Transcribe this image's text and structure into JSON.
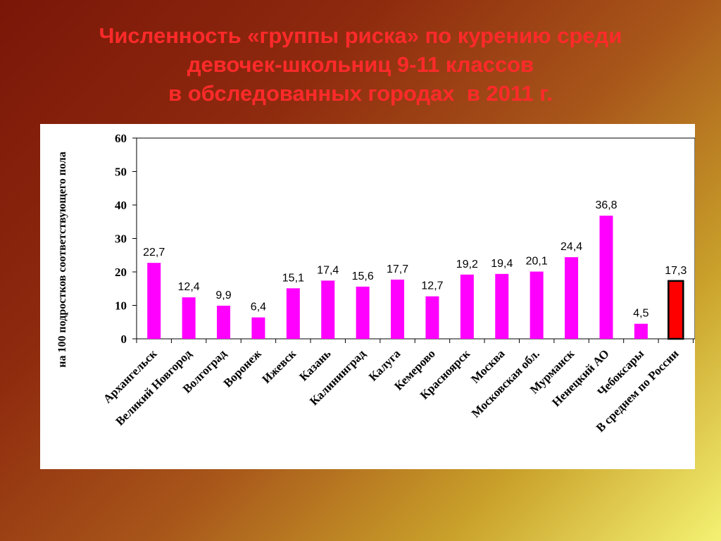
{
  "slide": {
    "title_lines": [
      "Численность «группы риска» по курению среди",
      "девочек-школьниц 9-11 классов",
      "в обследованных городах  в 2011 г."
    ]
  },
  "chart_data": {
    "type": "bar",
    "ylabel": "на 100 подростков соответствующего пола",
    "ylim": [
      0,
      60
    ],
    "yticks": [
      "0",
      "10",
      "20",
      "30",
      "40",
      "50",
      "60"
    ],
    "categories": [
      "Архангельск",
      "Великий Новгород",
      "Волгоград",
      "Воронеж",
      "Ижевск",
      "Казань",
      "Калининград",
      "Калуга",
      "Кемерово",
      "Красноярск",
      "Москва",
      "Московская обл.",
      "Мурманск",
      "Ненецкий АО",
      "Чебоксары",
      "В среднем по России"
    ],
    "values": [
      22.7,
      12.4,
      9.9,
      6.4,
      15.1,
      17.4,
      15.6,
      17.7,
      12.7,
      19.2,
      19.4,
      20.1,
      24.4,
      36.8,
      4.5,
      17.3
    ],
    "value_labels": [
      "22,7",
      "12,4",
      "9,9",
      "6,4",
      "15,1",
      "17,4",
      "15,6",
      "17,7",
      "12,7",
      "19,2",
      "19,4",
      "20,1",
      "24,4",
      "36,8",
      "4,5",
      "17,3"
    ],
    "grid": false,
    "legend": "none",
    "colors": {
      "bar": "#ff00ff",
      "highlight_bar": "#ff0000",
      "highlight_index": 15,
      "bar_stroke": "#000000",
      "title": "#ff2a2a"
    }
  }
}
